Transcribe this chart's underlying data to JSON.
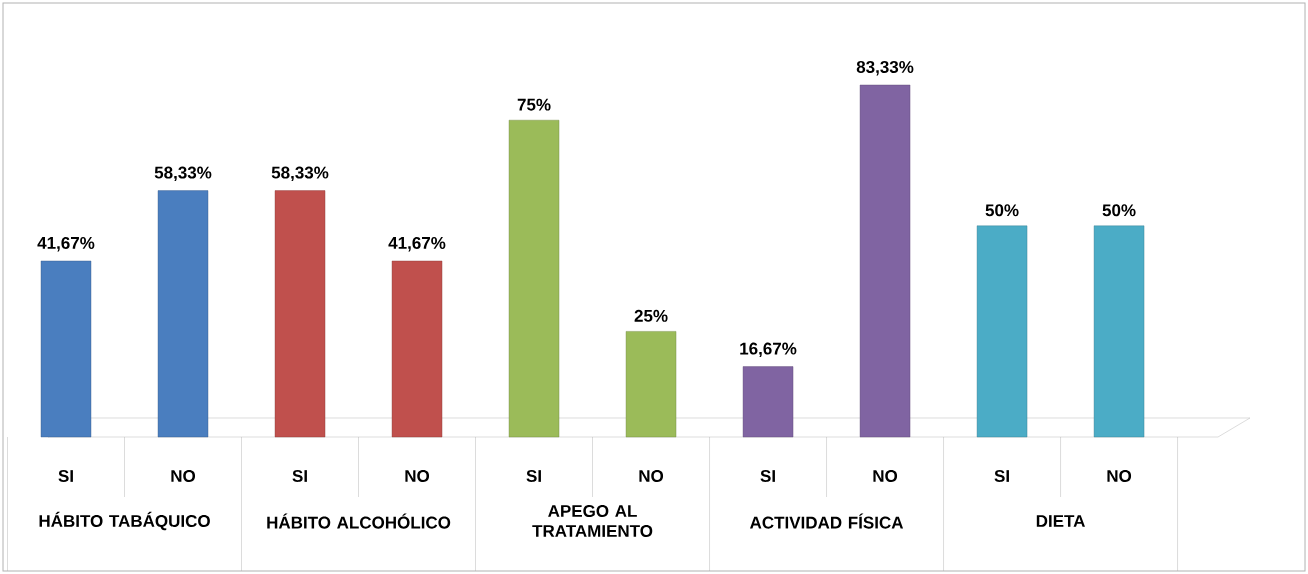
{
  "chart_data": {
    "type": "bar",
    "categories": [
      "SI",
      "NO",
      "SI",
      "NO",
      "SI",
      "NO",
      "SI",
      "NO",
      "SI",
      "NO"
    ],
    "values": [
      41.67,
      58.33,
      58.33,
      41.67,
      75,
      25,
      16.67,
      83.33,
      50,
      50
    ],
    "colors": [
      "#4a7ebf",
      "#4a7ebf",
      "#c0504d",
      "#c0504d",
      "#9bbb59",
      "#9bbb59",
      "#8064a2",
      "#8064a2",
      "#4bacc6",
      "#4bacc6"
    ],
    "value_labels": [
      "41,67%",
      "58,33%",
      "58,33%",
      "41,67%",
      "75%",
      "25%",
      "16,67%",
      "83,33%",
      "50%",
      "50%"
    ],
    "annotations": [
      "HÁBITO TABÁQUICO",
      "HÁBITO ALCOHÓLICO",
      "APEGO AL TRATAMIENTO",
      "ACTIVIDAD FÍSICA",
      "DIETA"
    ]
  }
}
